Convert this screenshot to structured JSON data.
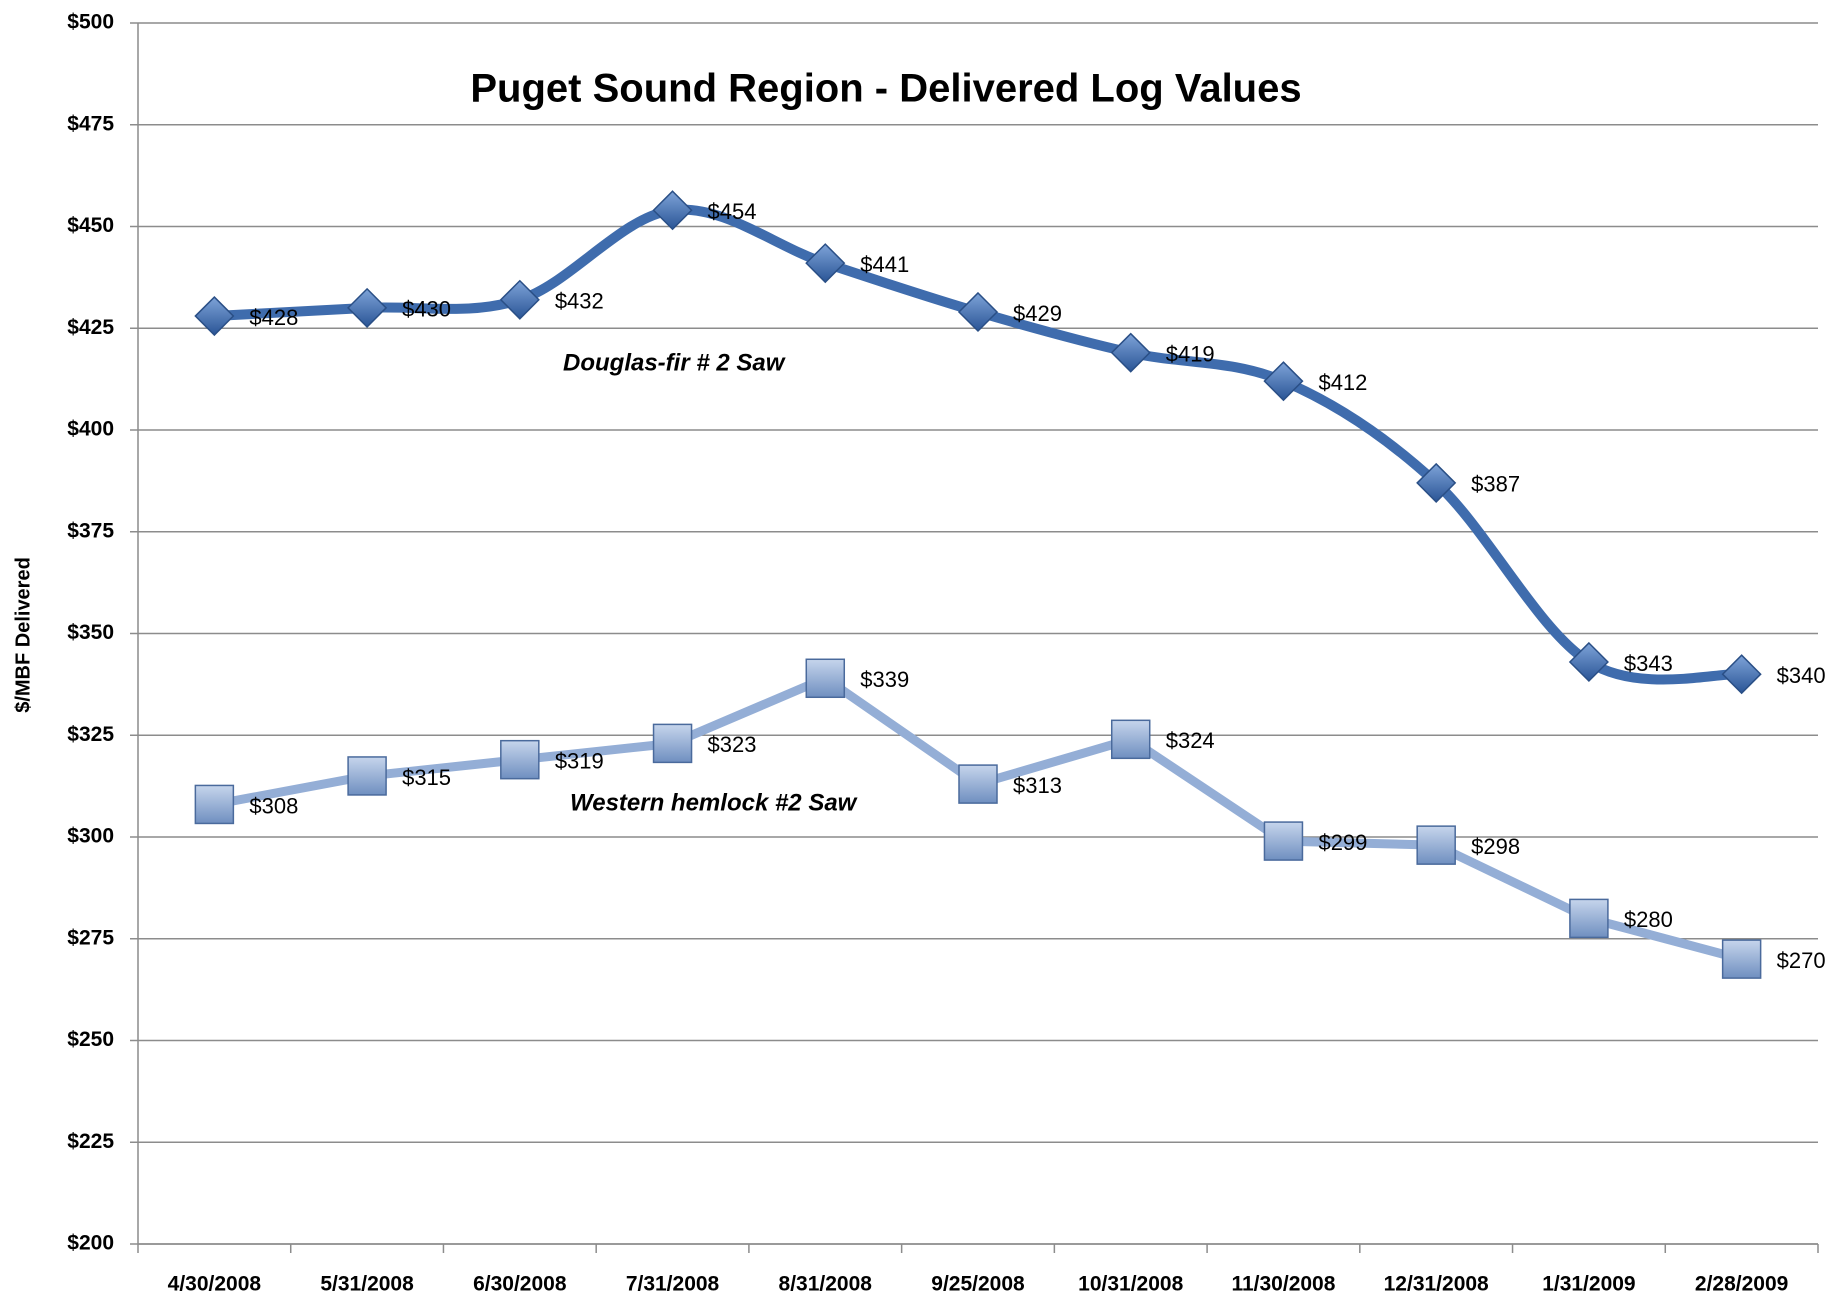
{
  "chart_data": {
    "type": "line",
    "title": "Puget Sound Region - Delivered Log Values",
    "y_label": "$/MBF Delivered",
    "categories": [
      "4/30/2008",
      "5/31/2008",
      "6/30/2008",
      "7/31/2008",
      "8/31/2008",
      "9/25/2008",
      "10/31/2008",
      "11/30/2008",
      "12/31/2008",
      "1/31/2009",
      "2/28/2009"
    ],
    "series": [
      {
        "name": "Douglas-fir # 2 Saw",
        "color": "#3f6cad",
        "marker": "diamond",
        "smooth": true,
        "values": [
          428,
          430,
          432,
          454,
          441,
          429,
          419,
          412,
          387,
          343,
          340
        ],
        "value_labels": [
          "$428",
          "$430",
          "$432",
          "$454",
          "$441",
          "$429",
          "$419",
          "$412",
          "$387",
          "$343",
          "$340"
        ]
      },
      {
        "name": "Western hemlock #2 Saw",
        "color": "#94aed6",
        "marker": "square",
        "smooth": false,
        "values": [
          308,
          315,
          319,
          323,
          339,
          313,
          324,
          299,
          298,
          280,
          270
        ],
        "value_labels": [
          "$308",
          "$315",
          "$319",
          "$323",
          "$339",
          "$313",
          "$324",
          "$299",
          "$298",
          "$280",
          "$270"
        ]
      }
    ],
    "ylim": [
      200,
      500
    ],
    "yticks": [
      {
        "value": 200,
        "label": "$200"
      },
      {
        "value": 225,
        "label": "$225"
      },
      {
        "value": 250,
        "label": "$250"
      },
      {
        "value": 275,
        "label": "$275"
      },
      {
        "value": 300,
        "label": "$300"
      },
      {
        "value": 325,
        "label": "$325"
      },
      {
        "value": 350,
        "label": "$350"
      },
      {
        "value": 375,
        "label": "$375"
      },
      {
        "value": 400,
        "label": "$400"
      },
      {
        "value": 425,
        "label": "$425"
      },
      {
        "value": 450,
        "label": "$450"
      },
      {
        "value": 475,
        "label": "$475"
      },
      {
        "value": 500,
        "label": "$500"
      }
    ],
    "grid": true
  }
}
